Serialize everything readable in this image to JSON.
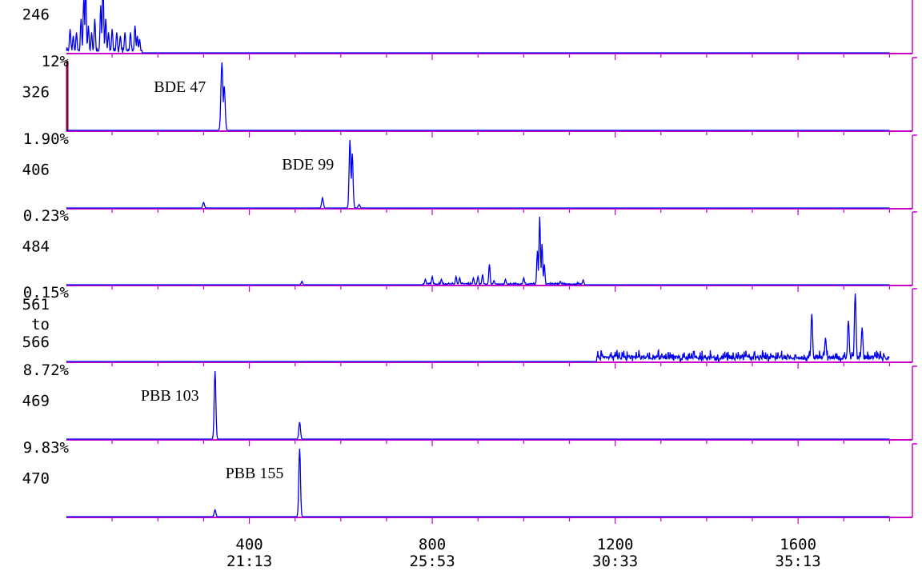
{
  "chart_data": {
    "type": "line",
    "colors": {
      "trace": "#0000ee",
      "axis": "#cc00cc",
      "text": "#000000",
      "marker": "#800040"
    },
    "x_axis": {
      "range": [
        0,
        1850
      ],
      "ticks": [
        {
          "scan": 400,
          "time": "21:13"
        },
        {
          "scan": 800,
          "time": "25:53"
        },
        {
          "scan": 1200,
          "time": "30:33"
        },
        {
          "scan": 1600,
          "time": "35:13"
        }
      ],
      "minor_step": 100
    },
    "panels": [
      {
        "mass_label": [
          "246"
        ],
        "scale_label": "",
        "annotation": "",
        "peaks": [
          [
            8,
            0.35
          ],
          [
            15,
            0.25
          ],
          [
            22,
            0.3
          ],
          [
            32,
            0.5
          ],
          [
            38,
            0.8
          ],
          [
            42,
            1.0
          ],
          [
            48,
            0.4
          ],
          [
            55,
            0.3
          ],
          [
            62,
            0.5
          ],
          [
            75,
            0.7
          ],
          [
            80,
            1.0
          ],
          [
            86,
            0.5
          ],
          [
            92,
            0.3
          ],
          [
            100,
            0.35
          ],
          [
            110,
            0.3
          ],
          [
            118,
            0.25
          ],
          [
            128,
            0.3
          ],
          [
            140,
            0.3
          ],
          [
            150,
            0.4
          ],
          [
            155,
            0.25
          ],
          [
            160,
            0.2
          ]
        ],
        "peak_width": 2.5,
        "noise": [
          [
            0,
            165,
            0.12
          ]
        ]
      },
      {
        "mass_label": [
          "326"
        ],
        "scale_label": "12%",
        "annotation": "BDE 47",
        "peaks": [
          [
            340,
            1.0
          ],
          [
            345,
            0.65
          ]
        ],
        "peak_width": 3.5,
        "noise": [],
        "left_marker": true
      },
      {
        "mass_label": [
          "406"
        ],
        "scale_label": "1.90%",
        "annotation": "BDE 99",
        "peaks": [
          [
            300,
            0.08
          ],
          [
            560,
            0.15
          ],
          [
            620,
            1.0
          ],
          [
            625,
            0.8
          ],
          [
            640,
            0.05
          ]
        ],
        "peak_width": 3,
        "noise": []
      },
      {
        "mass_label": [
          "484"
        ],
        "scale_label": "0.23%",
        "annotation": "",
        "peaks": [
          [
            515,
            0.05
          ],
          [
            785,
            0.08
          ],
          [
            800,
            0.12
          ],
          [
            820,
            0.08
          ],
          [
            852,
            0.12
          ],
          [
            860,
            0.1
          ],
          [
            890,
            0.1
          ],
          [
            900,
            0.12
          ],
          [
            910,
            0.15
          ],
          [
            925,
            0.3
          ],
          [
            935,
            0.06
          ],
          [
            960,
            0.08
          ],
          [
            1000,
            0.1
          ],
          [
            1030,
            0.5
          ],
          [
            1035,
            1.0
          ],
          [
            1040,
            0.6
          ],
          [
            1045,
            0.3
          ],
          [
            1080,
            0.05
          ],
          [
            1130,
            0.07
          ]
        ],
        "peak_width": 2.5,
        "noise": [
          [
            780,
            1130,
            0.04
          ]
        ]
      },
      {
        "mass_label": [
          "561",
          "to",
          "566"
        ],
        "scale_label": "0.15%",
        "annotation": "",
        "peaks": [
          [
            1630,
            0.7
          ],
          [
            1660,
            0.35
          ],
          [
            1710,
            0.6
          ],
          [
            1725,
            1.0
          ],
          [
            1740,
            0.5
          ]
        ],
        "peak_width": 3,
        "noise": [
          [
            1160,
            1830,
            0.22
          ]
        ]
      },
      {
        "mass_label": [
          "469"
        ],
        "scale_label": "8.72%",
        "annotation": "PBB 103",
        "peaks": [
          [
            325,
            1.0
          ],
          [
            510,
            0.25
          ]
        ],
        "peak_width": 3,
        "noise": []
      },
      {
        "mass_label": [
          "470"
        ],
        "scale_label": "9.83%",
        "annotation": "PBB 155",
        "peaks": [
          [
            325,
            0.1
          ],
          [
            510,
            1.0
          ]
        ],
        "peak_width": 3,
        "noise": []
      }
    ]
  }
}
